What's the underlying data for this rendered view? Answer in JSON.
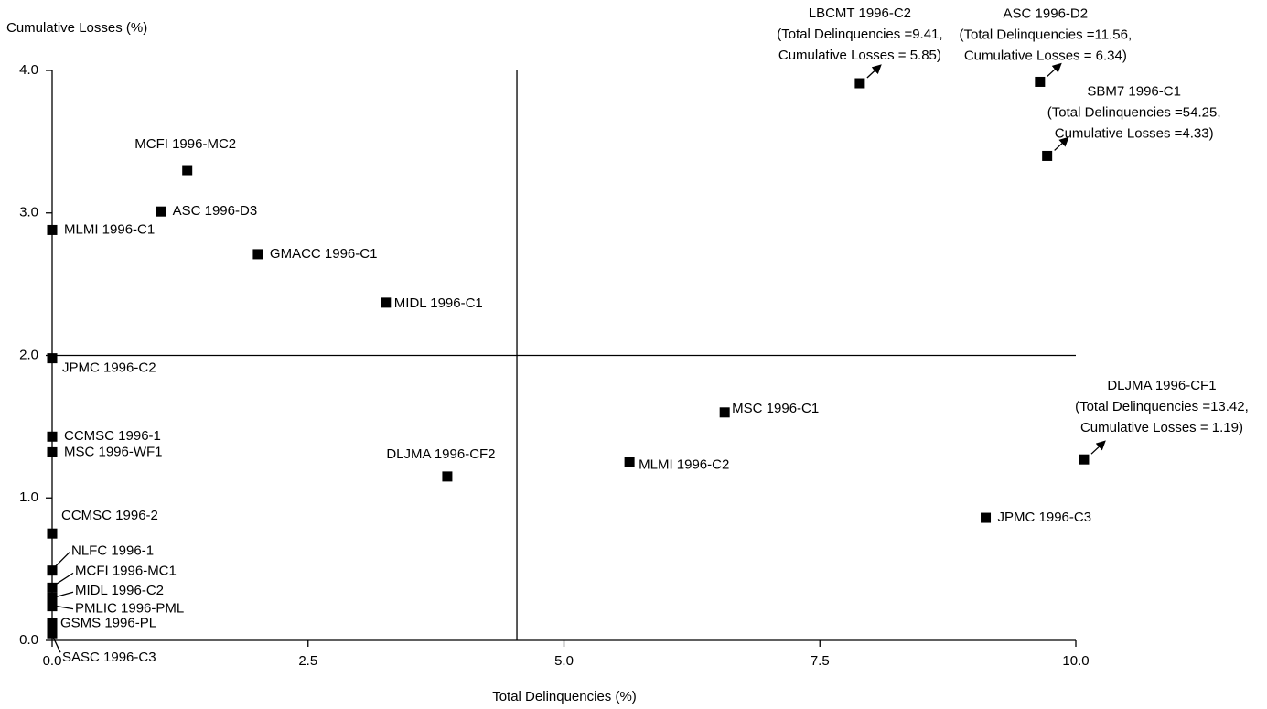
{
  "chart_data": {
    "type": "scatter",
    "ylabel": "Cumulative Losses (%)",
    "xlabel": "Total Delinquencies (%)",
    "xlim": [
      0,
      10
    ],
    "ylim": [
      0,
      4
    ],
    "xticks": [
      {
        "value": 0,
        "label": "0.0"
      },
      2.5,
      {
        "value": 5,
        "label": "5.0"
      },
      7.5,
      {
        "value": 10,
        "label": "10.0"
      }
    ],
    "yticks": [
      {
        "value": 0,
        "label": "0.0"
      },
      {
        "value": 1,
        "label": "1.0"
      },
      {
        "value": 2,
        "label": "2.0"
      },
      {
        "value": 3,
        "label": "3.0"
      },
      {
        "value": 4,
        "label": "4.0"
      }
    ],
    "reference_lines": {
      "x": 4.54,
      "y": 2.0
    },
    "color": "#000000",
    "points": [
      {
        "label": "MCFI 1996-MC2",
        "x": 1.32,
        "y": 3.3
      },
      {
        "label": "ASC 1996-D3",
        "x": 1.06,
        "y": 3.01
      },
      {
        "label": "MLMI 1996-C1",
        "x": 0.0,
        "y": 2.88
      },
      {
        "label": "GMACC 1996-C1",
        "x": 2.01,
        "y": 2.71
      },
      {
        "label": "MIDL 1996-C1",
        "x": 3.26,
        "y": 2.37
      },
      {
        "label": "JPMC 1996-C2",
        "x": 0.0,
        "y": 1.98
      },
      {
        "label": "CCMSC 1996-1",
        "x": 0.0,
        "y": 1.43
      },
      {
        "label": "MSC 1996-WF1",
        "x": 0.0,
        "y": 1.32
      },
      {
        "label": "DLJMA 1996-CF2",
        "x": 3.86,
        "y": 1.15
      },
      {
        "label": "CCMSC 1996-2",
        "x": 0.0,
        "y": 0.75
      },
      {
        "label": "NLFC 1996-1",
        "x": 0.0,
        "y": 0.49
      },
      {
        "label": "MCFI 1996-MC1",
        "x": 0.0,
        "y": 0.37
      },
      {
        "label": "MIDL 1996-C2",
        "x": 0.0,
        "y": 0.3
      },
      {
        "label": "PMLIC 1996-PML",
        "x": 0.0,
        "y": 0.24
      },
      {
        "label": "GSMS 1996-PL",
        "x": 0.0,
        "y": 0.12
      },
      {
        "label": "SASC 1996-C3",
        "x": 0.0,
        "y": 0.05
      },
      {
        "label": "MSC 1996-C1",
        "x": 6.57,
        "y": 1.6
      },
      {
        "label": "MLMI 1996-C2",
        "x": 5.64,
        "y": 1.25
      },
      {
        "label": "JPMC 1996-C3",
        "x": 9.12,
        "y": 0.86
      },
      {
        "label": "LBCMT 1996-C2",
        "x": 7.89,
        "y": 3.91,
        "annotation": [
          "(Total Delinquencies =9.41,",
          "Cumulative Losses = 5.85)"
        ]
      },
      {
        "label": "ASC 1996-D2",
        "x": 9.65,
        "y": 3.92,
        "annotation": [
          "(Total Delinquencies =11.56,",
          "Cumulative Losses = 6.34)"
        ]
      },
      {
        "label": "SBM7 1996-C1",
        "x": 9.72,
        "y": 3.4,
        "annotation": [
          "(Total Delinquencies =54.25,",
          "Cumulative Losses =4.33)"
        ]
      },
      {
        "label": "DLJMA 1996-CF1",
        "x": 10.08,
        "y": 1.27,
        "annotation": [
          "(Total Delinquencies =13.42,",
          "Cumulative Losses = 1.19)"
        ]
      }
    ]
  }
}
